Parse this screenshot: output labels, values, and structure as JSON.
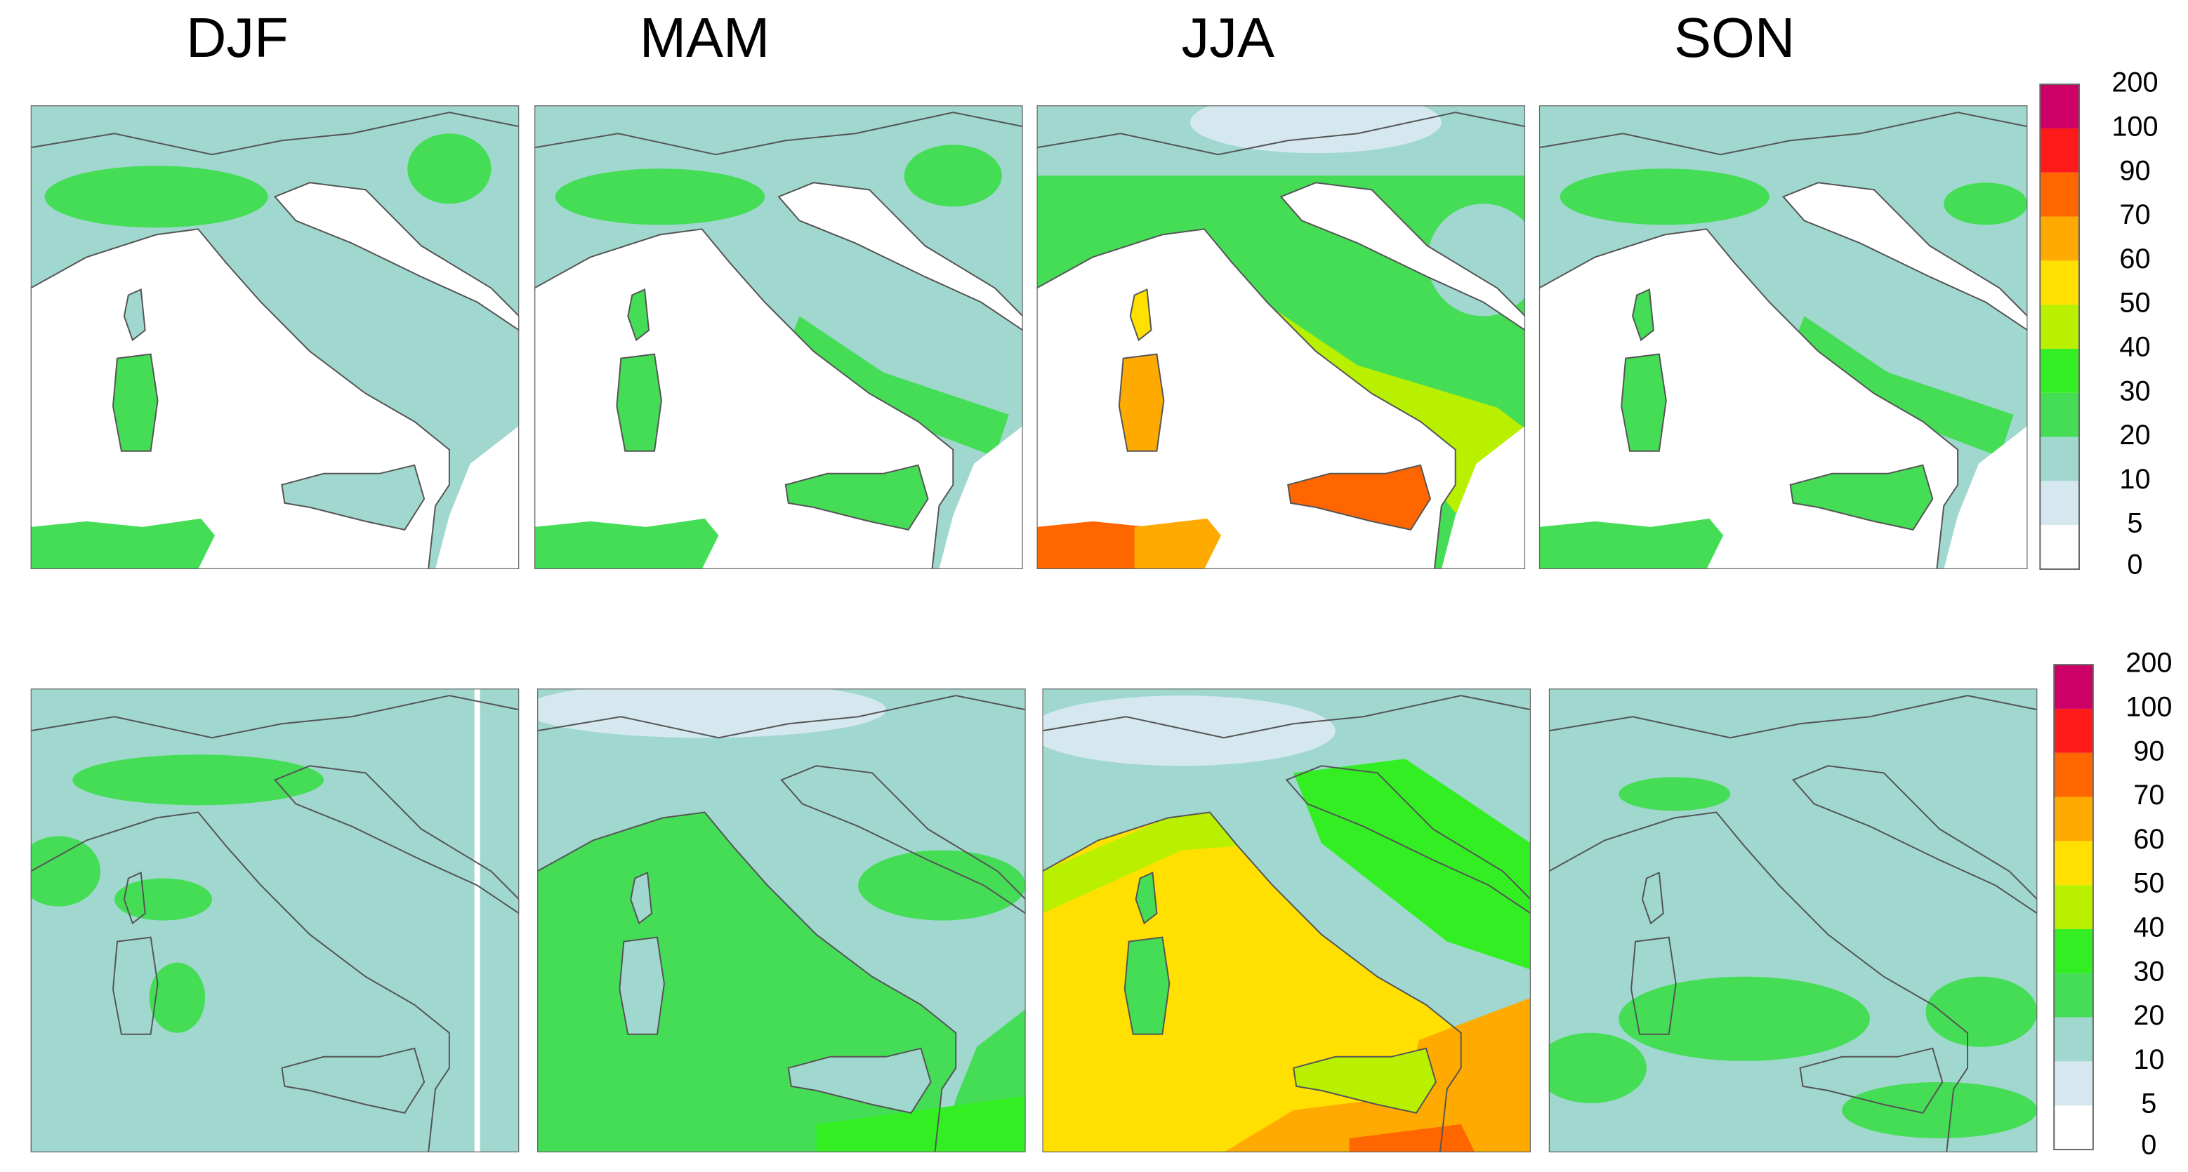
{
  "column_titles": [
    "DJF",
    "MAM",
    "JJA",
    "SON"
  ],
  "colorbars": [
    {
      "labels": [
        "0",
        "5",
        "10",
        "20",
        "30",
        "40",
        "50",
        "60",
        "70",
        "90",
        "100",
        "200"
      ],
      "colors": [
        "#ffffff",
        "#d5e8ef",
        "#a0d8cf",
        "#44dd55",
        "#33ee22",
        "#b8f000",
        "#ffe000",
        "#ffaa00",
        "#ff6600",
        "#ff1a1a",
        "#cc0066"
      ]
    },
    {
      "labels": [
        "0",
        "5",
        "10",
        "20",
        "30",
        "40",
        "50",
        "60",
        "70",
        "90",
        "100",
        "200"
      ],
      "colors": [
        "#ffffff",
        "#d5e8ef",
        "#a0d8cf",
        "#44dd55",
        "#33ee22",
        "#b8f000",
        "#ffe000",
        "#ffaa00",
        "#ff6600",
        "#ff1a1a",
        "#cc0066"
      ]
    }
  ]
}
